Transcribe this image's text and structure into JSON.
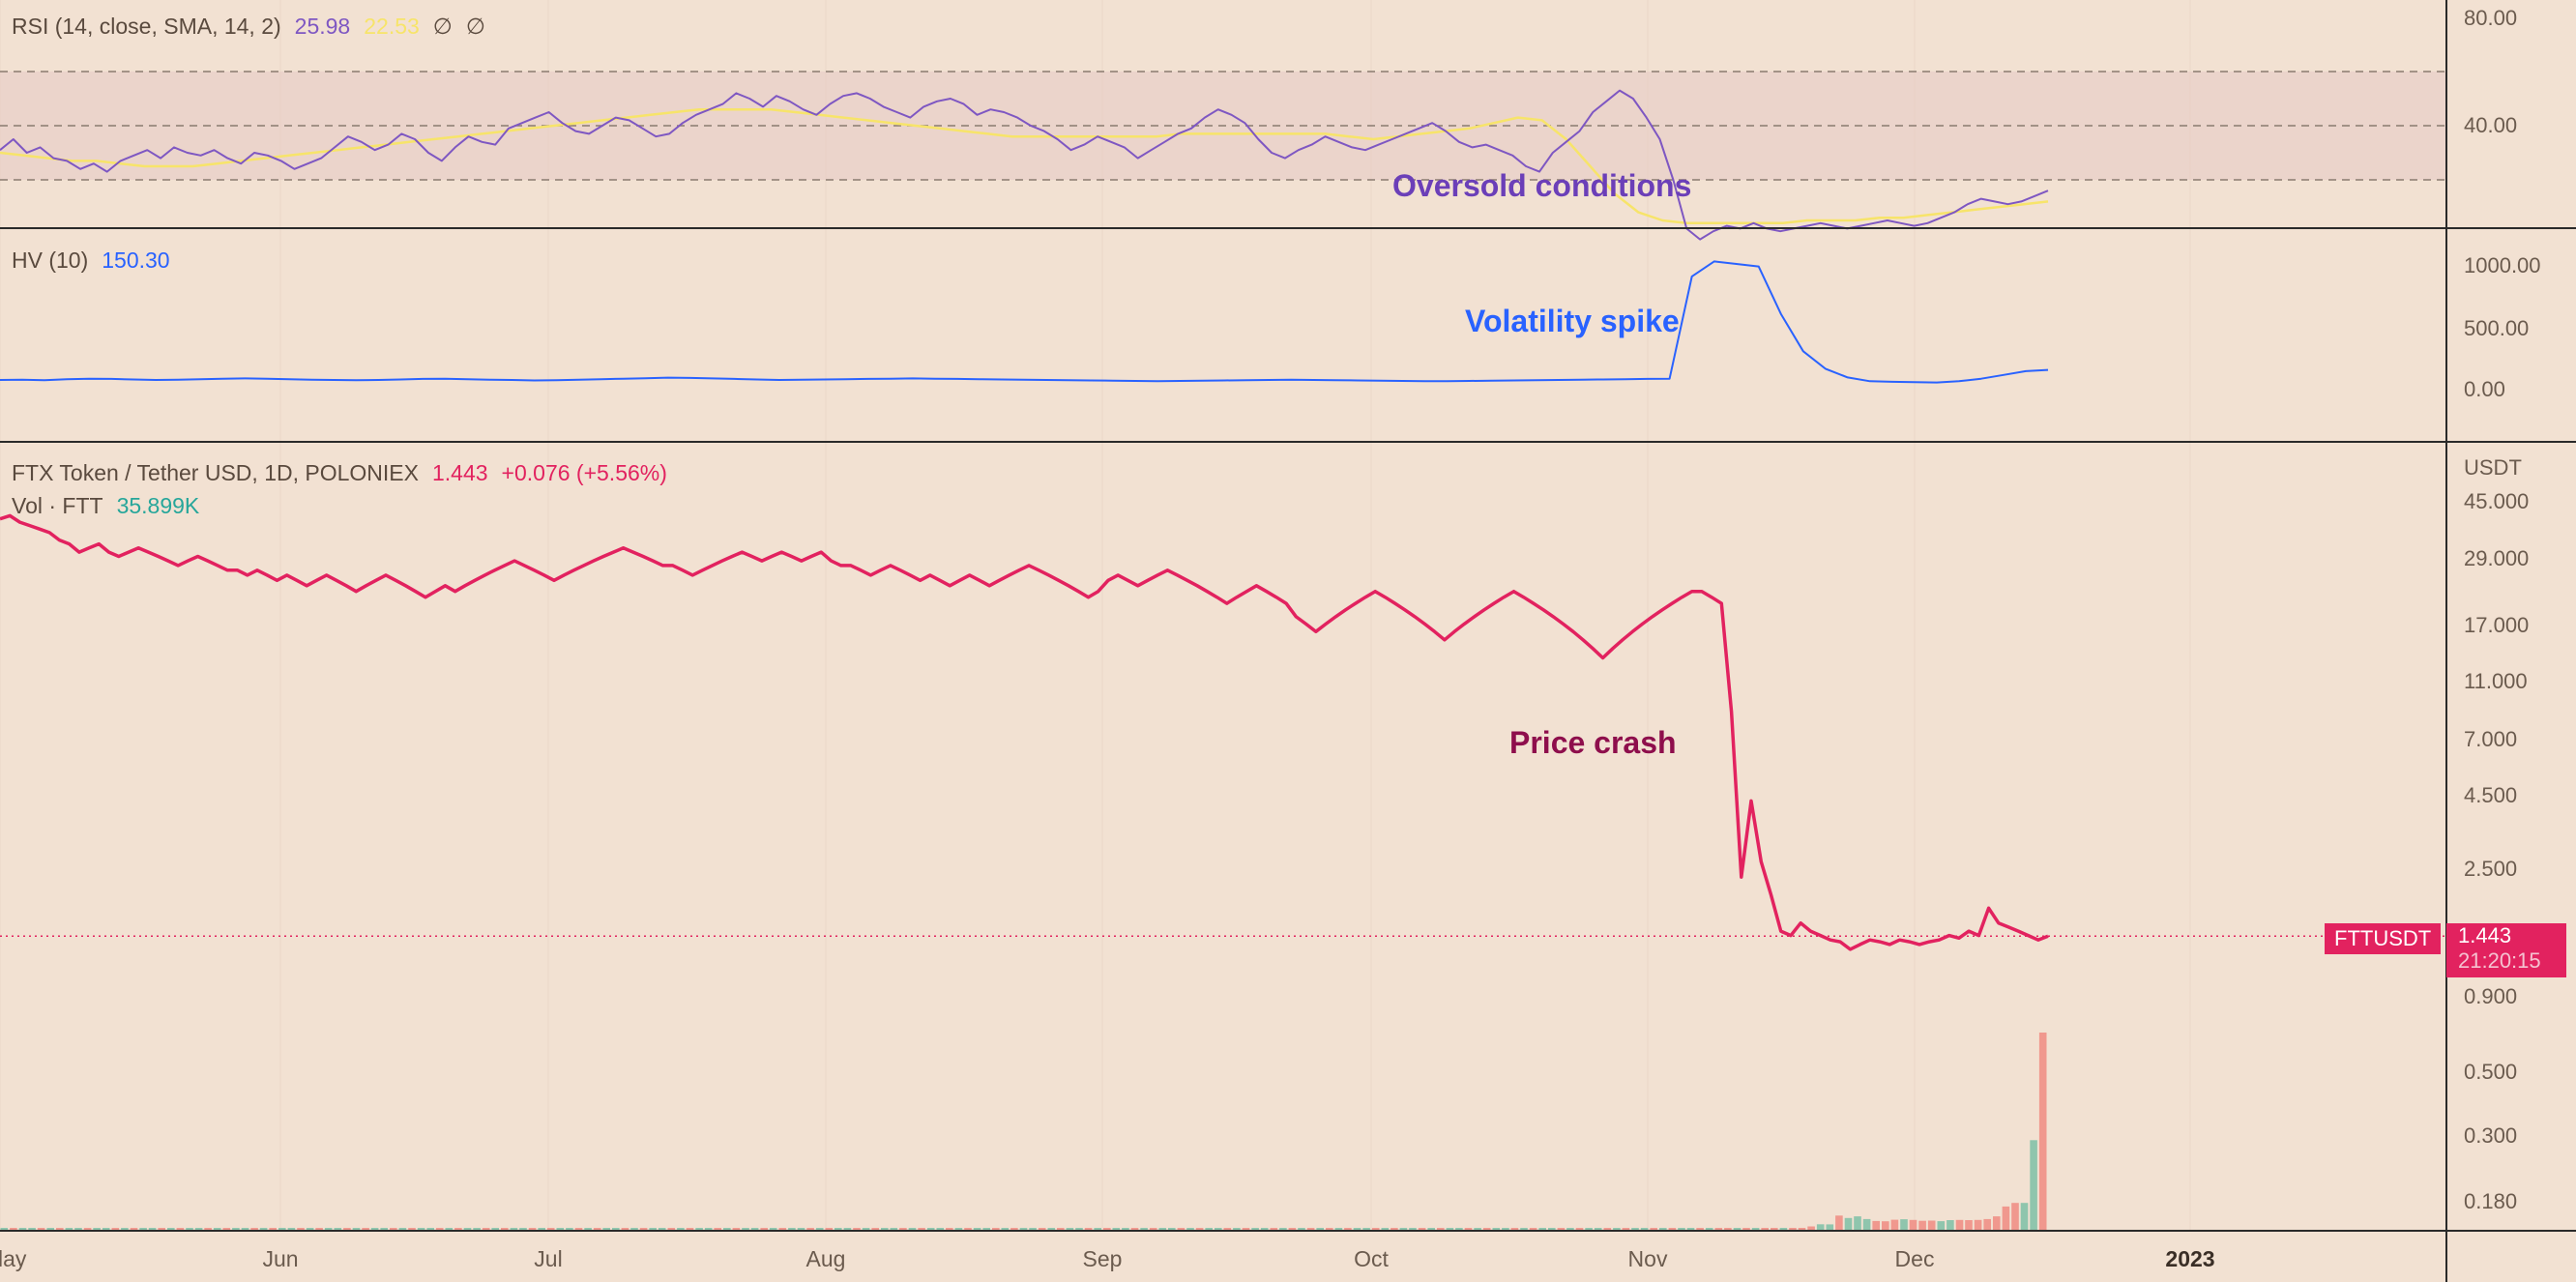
{
  "colors": {
    "background": "#f2e1d2",
    "rsi_line": "#7e57c2",
    "rsi_sma": "#f7e46a",
    "rsi_band": "#e6cbc5",
    "hv_line": "#2962ff",
    "price_line": "#e2225f",
    "vol_up": "#8fc5ad",
    "vol_down": "#f0988e",
    "separator": "#2a2a2a",
    "grid": "#ead7c8",
    "axis_text": "#6b5b4e",
    "anno_price": "#8e0e4c",
    "anno_hv": "#2962ff",
    "anno_rsi": "#6b3fb8"
  },
  "rsi_header": {
    "label": "RSI (14, close, SMA, 14, 2)",
    "value": "25.98",
    "sma_value": "22.53",
    "icon1": "∅",
    "icon2": "∅"
  },
  "hv_header": {
    "label": "HV (10)",
    "value": "150.30"
  },
  "price_header": {
    "label": "FTX Token / Tether USD, 1D, POLONIEX",
    "price": "1.443",
    "change": "+0.076 (+5.56%)"
  },
  "vol_header": {
    "label": "Vol · FTT",
    "value": "35.899K"
  },
  "annotations": {
    "rsi": "Oversold conditions",
    "hv": "Volatility spike",
    "price": "Price crash"
  },
  "price_badge": {
    "symbol": "FTTUSDT",
    "price": "1.443",
    "countdown": "21:20:15"
  },
  "chart_data": [
    {
      "type": "line",
      "panel": "RSI",
      "y_ticks": [
        "80.00",
        "40.00"
      ],
      "band": [
        30,
        70
      ],
      "midline": 50,
      "series": [
        {
          "name": "RSI",
          "values": [
            41,
            45,
            40,
            42,
            38,
            37,
            34,
            36,
            33,
            37,
            39,
            41,
            38,
            42,
            40,
            39,
            41,
            38,
            36,
            40,
            39,
            37,
            34,
            36,
            38,
            42,
            46,
            44,
            41,
            43,
            47,
            45,
            40,
            37,
            42,
            46,
            44,
            43,
            49,
            51,
            53,
            55,
            51,
            48,
            47,
            50,
            53,
            52,
            49,
            46,
            47,
            51,
            54,
            56,
            58,
            62,
            60,
            57,
            61,
            59,
            56,
            54,
            58,
            61,
            62,
            60,
            57,
            55,
            53,
            57,
            59,
            60,
            58,
            54,
            56,
            55,
            53,
            50,
            48,
            45,
            41,
            43,
            46,
            44,
            42,
            38,
            41,
            44,
            47,
            49,
            53,
            56,
            54,
            51,
            45,
            40,
            38,
            41,
            43,
            46,
            44,
            42,
            41,
            43,
            45,
            47,
            49,
            51,
            48,
            44,
            42,
            43,
            41,
            39,
            35,
            33,
            40,
            44,
            48,
            55,
            59,
            63,
            60,
            53,
            45,
            30,
            12,
            8,
            11,
            13,
            12,
            14,
            12,
            11,
            12,
            13,
            14,
            13,
            12,
            13,
            14,
            15,
            14,
            13,
            14,
            16,
            18,
            21,
            23,
            22,
            21,
            22,
            24,
            26
          ]
        },
        {
          "name": "RSI-based MA",
          "values": [
            40,
            39,
            38,
            37,
            37,
            36,
            35,
            35,
            35,
            36,
            37,
            38,
            39,
            40,
            41,
            42,
            43,
            44,
            45,
            46,
            47,
            48,
            49,
            50,
            51,
            52,
            53,
            54,
            55,
            56,
            56,
            56,
            56,
            55,
            54,
            53,
            52,
            51,
            50,
            49,
            48,
            47,
            46,
            46,
            46,
            46,
            46,
            46,
            46,
            47,
            47,
            47,
            47,
            47,
            47,
            47,
            46,
            45,
            46,
            47,
            48,
            49,
            51,
            53,
            52,
            45,
            35,
            25,
            18,
            15,
            14,
            14,
            14,
            14,
            14,
            15,
            15,
            15,
            16,
            16,
            17,
            18,
            19,
            20,
            21,
            22
          ]
        }
      ]
    },
    {
      "type": "line",
      "panel": "HV (10)",
      "y_ticks": [
        "1000.00",
        "500.00",
        "0.00"
      ],
      "series": [
        {
          "name": "HV (10)",
          "values": [
            70,
            72,
            68,
            75,
            80,
            78,
            74,
            70,
            72,
            76,
            80,
            82,
            79,
            75,
            72,
            70,
            68,
            70,
            74,
            78,
            80,
            76,
            72,
            70,
            66,
            68,
            72,
            76,
            80,
            84,
            88,
            86,
            82,
            78,
            74,
            70,
            72,
            74,
            76,
            78,
            80,
            82,
            80,
            78,
            76,
            74,
            72,
            70,
            68,
            66,
            64,
            62,
            60,
            62,
            64,
            66,
            68,
            70,
            72,
            70,
            68,
            66,
            64,
            62,
            60,
            60,
            62,
            64,
            66,
            68,
            70,
            72,
            74,
            76,
            78,
            80,
            900,
            1020,
            1000,
            980,
            600,
            300,
            160,
            90,
            60,
            55,
            52,
            50,
            60,
            80,
            110,
            140,
            150
          ]
        }
      ]
    },
    {
      "type": "line",
      "panel": "FTX Token / Tether USD, 1D, POLONIEX",
      "x_tick_labels": [
        "lay",
        "Jun",
        "Jul",
        "Aug",
        "Sep",
        "Oct",
        "Nov",
        "Dec",
        "2023"
      ],
      "y_tick_labels": [
        "45.000",
        "29.000",
        "17.000",
        "11.000",
        "7.000",
        "4.500",
        "2.500",
        "0.900",
        "0.500",
        "0.300",
        "0.180"
      ],
      "y_scale": "log",
      "y_unit": "USDT",
      "current_price": 1.443,
      "series": [
        {
          "name": "FTX Token / Tether USD",
          "values": [
            39,
            40,
            38,
            37,
            36,
            35,
            33,
            32,
            30,
            31,
            32,
            30,
            29,
            30,
            31,
            30,
            29,
            28,
            27,
            28,
            29,
            28,
            27,
            26,
            26,
            25,
            26,
            25,
            24,
            25,
            24,
            23,
            24,
            25,
            24,
            23,
            22,
            23,
            24,
            25,
            24,
            23,
            22,
            21,
            22,
            23,
            22,
            23,
            24,
            25,
            26,
            27,
            28,
            27,
            26,
            25,
            24,
            25,
            26,
            27,
            28,
            29,
            30,
            31,
            30,
            29,
            28,
            27,
            27,
            26,
            25,
            26,
            27,
            28,
            29,
            30,
            29,
            28,
            29,
            30,
            29,
            28,
            29,
            30,
            28,
            27,
            27,
            26,
            25,
            26,
            27,
            26,
            25,
            24,
            25,
            24,
            23,
            24,
            25,
            24,
            23,
            24,
            25,
            26,
            27,
            26,
            25,
            24,
            23,
            22,
            21,
            22,
            24,
            25,
            24,
            23,
            24,
            25,
            26,
            25,
            24,
            23,
            22,
            21,
            20,
            21,
            22,
            23,
            22,
            21,
            20,
            18,
            17,
            16,
            17,
            18,
            19,
            20,
            21,
            22,
            21,
            20,
            19,
            18,
            17,
            16,
            15,
            16,
            17,
            18,
            19,
            20,
            21,
            22,
            21,
            20,
            19,
            18,
            17,
            16,
            15,
            14,
            13,
            14,
            15,
            16,
            17,
            18,
            19,
            20,
            21,
            22,
            22,
            21,
            20,
            8.5,
            2.3,
            4.2,
            2.6,
            2.0,
            1.5,
            1.45,
            1.6,
            1.5,
            1.45,
            1.4,
            1.38,
            1.3,
            1.35,
            1.4,
            1.38,
            1.35,
            1.4,
            1.38,
            1.35,
            1.38,
            1.4,
            1.45,
            1.42,
            1.5,
            1.45,
            1.8,
            1.6,
            1.55,
            1.5,
            1.45,
            1.4,
            1.443
          ]
        }
      ]
    },
    {
      "type": "bar",
      "panel": "Vol · FTT",
      "series": [
        {
          "name": "Vol · FTT",
          "values": [
            1,
            1,
            1,
            1,
            1,
            1,
            1,
            1,
            1,
            1,
            1,
            1,
            1,
            1,
            1,
            1,
            1,
            1,
            1,
            1,
            1,
            1,
            1,
            1,
            1,
            1,
            1,
            1,
            1,
            1,
            1,
            1,
            1,
            1,
            1,
            1,
            1,
            1,
            1,
            1,
            1,
            1,
            1,
            1,
            1,
            1,
            1,
            1,
            1,
            1,
            1,
            1,
            1,
            1,
            1,
            1,
            1,
            1,
            1,
            1,
            1,
            1,
            1,
            1,
            1,
            1,
            1,
            1,
            1,
            1,
            1,
            1,
            1,
            1,
            1,
            1,
            1,
            1,
            1,
            1,
            1,
            1,
            1,
            1,
            1,
            1,
            1,
            1,
            1,
            1,
            1,
            1,
            1,
            1,
            1,
            1,
            1,
            1,
            1,
            1,
            1,
            1,
            1,
            1,
            1,
            1,
            1,
            1,
            1,
            1,
            1,
            1,
            1,
            1,
            1,
            1,
            1,
            1,
            1,
            1,
            1,
            1,
            1,
            1,
            1,
            1,
            1,
            1,
            1,
            1,
            1,
            1,
            1,
            1,
            1,
            1,
            1,
            1,
            1,
            1,
            2,
            2,
            2,
            2,
            2,
            2,
            3,
            3,
            3,
            3,
            3,
            3,
            3,
            3,
            3,
            3,
            3,
            3,
            3,
            3,
            3,
            3,
            3,
            3,
            3,
            3,
            3,
            3,
            3,
            3,
            3,
            3,
            3,
            3,
            3,
            3,
            3,
            3,
            3,
            3,
            3,
            3,
            3,
            3,
            3,
            3,
            5,
            6,
            8,
            10,
            8,
            8,
            9,
            8,
            9,
            38,
            62,
            60,
            158,
            132,
            150,
            120,
            98,
            95,
            112,
            118,
            110,
            100,
            102,
            96,
            108,
            110,
            108,
            110,
            120,
            150,
            260,
            300,
            300,
            1000,
            2200
          ],
          "up": [
            1,
            0,
            1,
            1,
            0,
            1,
            0,
            1,
            1,
            0,
            1,
            1,
            0,
            1,
            0,
            1,
            1,
            0,
            1,
            0,
            1,
            1,
            0,
            1,
            0,
            1,
            1,
            0,
            1,
            0,
            1,
            1,
            0,
            1,
            0,
            1,
            1,
            0,
            1,
            0,
            1,
            1,
            0,
            1,
            0,
            1,
            1,
            0,
            1,
            0,
            1,
            1,
            0,
            1,
            0,
            1,
            1,
            0,
            1,
            0,
            1,
            1,
            0,
            1,
            0,
            1,
            1,
            0,
            1,
            0,
            1,
            1,
            0,
            1,
            0,
            1,
            1,
            0,
            1,
            0,
            1,
            1,
            0,
            1,
            0,
            1,
            1,
            0,
            1,
            0,
            1,
            1,
            0,
            1,
            0,
            1,
            1,
            0,
            1,
            0,
            1,
            1,
            0,
            1,
            0,
            1,
            1,
            0,
            1,
            0,
            1,
            1,
            0,
            1,
            0,
            1,
            1,
            0,
            1,
            0,
            1,
            1,
            0,
            1,
            0,
            1,
            1,
            0,
            1,
            0,
            1,
            1,
            0,
            1,
            0,
            1,
            1,
            0,
            1,
            0,
            1,
            0,
            1,
            0,
            1,
            0,
            1,
            1,
            0,
            1,
            0,
            1,
            1,
            0,
            1,
            0,
            1,
            1,
            0,
            1,
            0,
            1,
            1,
            0,
            1,
            0,
            1,
            1,
            0,
            1,
            0,
            1,
            1,
            0,
            1,
            0,
            1,
            1,
            0,
            1,
            0,
            1,
            1,
            0,
            1,
            0,
            0,
            1,
            0,
            1,
            0,
            0,
            1,
            0,
            0,
            0,
            1,
            1,
            0,
            1,
            1,
            1,
            0,
            0,
            0,
            1,
            0,
            0,
            0,
            1,
            1,
            0,
            0,
            0,
            0,
            0,
            0,
            0,
            1,
            1
          ]
        }
      ]
    }
  ]
}
